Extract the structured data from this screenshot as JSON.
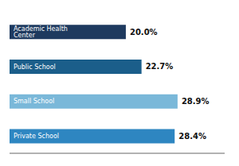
{
  "chart_data": {
    "type": "bar",
    "orientation": "horizontal",
    "categories": [
      "Academic Health Center",
      "Public School",
      "Small School",
      "Private School"
    ],
    "values": [
      20.0,
      22.7,
      28.9,
      28.4
    ],
    "value_labels": [
      "20.0%",
      "22.7%",
      "28.9%",
      "28.4%"
    ],
    "data_labels": true,
    "colors": [
      "#1e3a5f",
      "#1b5e8a",
      "#7ab8d9",
      "#2e86c1"
    ],
    "xlim": [
      0,
      37
    ],
    "tick_labels": false,
    "grid": false
  }
}
